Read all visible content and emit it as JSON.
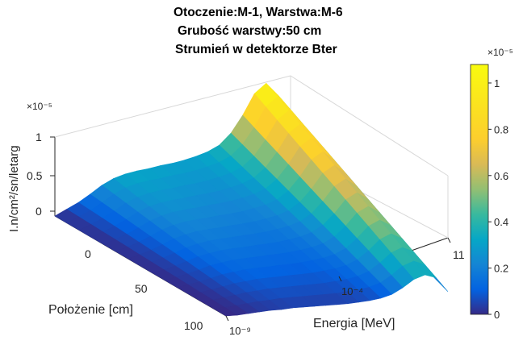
{
  "chart_data": {
    "type": "surface",
    "title_lines": [
      "Otoczenie:M-1, Warstwa:M-6",
      "Grubość warstwy:50 cm",
      "Strumień w detektorze Bter"
    ],
    "z_label": "I.n/cm²/sn/letarg",
    "z_scale_label": "×10⁻⁵",
    "z_ticks": [
      "0",
      "0.5",
      "1"
    ],
    "x_label": "Położenie [cm]",
    "x_ticks": [
      "0",
      "50",
      "100"
    ],
    "x_range": [
      -50,
      100
    ],
    "y_label": "Energia [MeV]",
    "y_tick_labels": [
      "10⁻⁹",
      "10⁻⁴",
      "11"
    ],
    "y_scale": "log",
    "colorbar": {
      "scale_label": "×10⁻⁵",
      "ticks": [
        "0",
        "0.2",
        "0.4",
        "0.6",
        "0.8",
        "1"
      ],
      "range": [
        0,
        1.08
      ],
      "colormap": "parula"
    },
    "energy_grid_log10": [
      -9,
      -8.5,
      -8,
      -7.5,
      -7,
      -6.5,
      -6,
      -5.5,
      -5,
      -4.5,
      -4,
      -3.5,
      -3,
      -2.5,
      -2,
      -1.5,
      -1,
      -0.5,
      0,
      0.5,
      1.04
    ],
    "flux_profile_at_minus50cm_e5": [
      0.0,
      0.05,
      0.1,
      0.17,
      0.25,
      0.3,
      0.32,
      0.32,
      0.31,
      0.31,
      0.3,
      0.3,
      0.31,
      0.33,
      0.38,
      0.5,
      0.7,
      0.95,
      1.05,
      0.85,
      0.3
    ],
    "flux_profile_at_100cm_e5": [
      0.0,
      0.0,
      0.01,
      0.02,
      0.03,
      0.03,
      0.04,
      0.04,
      0.04,
      0.04,
      0.04,
      0.04,
      0.05,
      0.06,
      0.08,
      0.12,
      0.2,
      0.3,
      0.35,
      0.3,
      0.1
    ],
    "grid": true
  }
}
